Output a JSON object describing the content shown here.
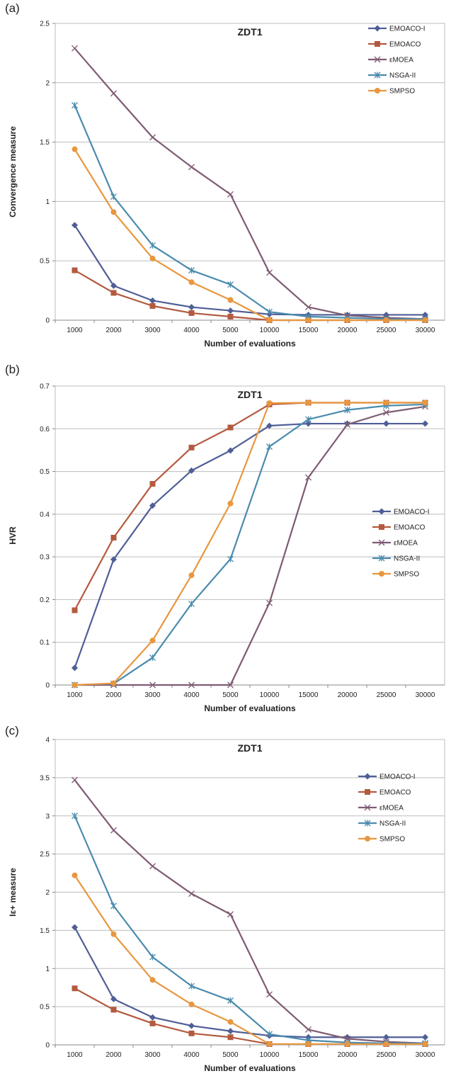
{
  "chart_data": [
    {
      "panel_label": "(a)",
      "type": "line",
      "title": "ZDT1",
      "xlabel": "Number of evaluations",
      "ylabel": "Convergence measure",
      "categories": [
        "1000",
        "2000",
        "3000",
        "4000",
        "5000",
        "10000",
        "15000",
        "20000",
        "25000",
        "30000"
      ],
      "ylim": [
        0,
        2.5
      ],
      "yticks": [
        "0",
        "0.5",
        "1",
        "1.5",
        "2",
        "2.5"
      ],
      "grid": true,
      "legend_position": "top-right",
      "series": [
        {
          "name": "EMOACO-I",
          "color": "#4F5E96",
          "marker": "diamond",
          "values": [
            0.8,
            0.29,
            0.165,
            0.11,
            0.08,
            0.05,
            0.045,
            0.045,
            0.045,
            0.045
          ]
        },
        {
          "name": "EMOACO",
          "color": "#B35A3F",
          "marker": "square",
          "values": [
            0.42,
            0.23,
            0.12,
            0.06,
            0.03,
            0.0,
            0.0,
            0.0,
            0.0,
            0.0
          ]
        },
        {
          "name": "εMOEA",
          "color": "#7E5B73",
          "marker": "x",
          "values": [
            2.29,
            1.91,
            1.54,
            1.29,
            1.06,
            0.4,
            0.11,
            0.04,
            0.02,
            0.01
          ]
        },
        {
          "name": "NSGA-II",
          "color": "#4A8BAE",
          "marker": "star",
          "values": [
            1.81,
            1.04,
            0.63,
            0.42,
            0.3,
            0.07,
            0.03,
            0.02,
            0.01,
            0.01
          ]
        },
        {
          "name": "SMPSO",
          "color": "#E8973F",
          "marker": "circle",
          "values": [
            1.44,
            0.91,
            0.52,
            0.32,
            0.17,
            0.0,
            0.0,
            0.0,
            0.0,
            0.0
          ]
        }
      ]
    },
    {
      "panel_label": "(b)",
      "type": "line",
      "title": "ZDT1",
      "xlabel": "Number of evaluations",
      "ylabel": "HVR",
      "categories": [
        "1000",
        "2000",
        "3000",
        "4000",
        "5000",
        "10000",
        "15000",
        "20000",
        "25000",
        "30000"
      ],
      "ylim": [
        0,
        0.7
      ],
      "yticks": [
        "0",
        "0.1",
        "0.2",
        "0.3",
        "0.4",
        "0.5",
        "0.6",
        "0.7"
      ],
      "grid": true,
      "legend_position": "right",
      "series": [
        {
          "name": "EMOACO-I",
          "color": "#4F5E96",
          "marker": "diamond",
          "values": [
            0.04,
            0.294,
            0.42,
            0.502,
            0.549,
            0.607,
            0.612,
            0.612,
            0.612,
            0.612
          ]
        },
        {
          "name": "EMOACO",
          "color": "#B35A3F",
          "marker": "square",
          "values": [
            0.175,
            0.345,
            0.471,
            0.556,
            0.603,
            0.657,
            0.661,
            0.661,
            0.661,
            0.661
          ]
        },
        {
          "name": "εMOEA",
          "color": "#7E5B73",
          "marker": "x",
          "values": [
            0.0,
            0.0,
            0.0,
            0.0,
            0.0,
            0.192,
            0.486,
            0.61,
            0.638,
            0.652
          ]
        },
        {
          "name": "NSGA-II",
          "color": "#4A8BAE",
          "marker": "star",
          "values": [
            0.0,
            0.003,
            0.064,
            0.19,
            0.295,
            0.558,
            0.622,
            0.644,
            0.654,
            0.657
          ]
        },
        {
          "name": "SMPSO",
          "color": "#E8973F",
          "marker": "circle",
          "values": [
            0.0,
            0.004,
            0.104,
            0.257,
            0.425,
            0.66,
            0.661,
            0.661,
            0.661,
            0.661
          ]
        }
      ]
    },
    {
      "panel_label": "(c)",
      "type": "line",
      "title": "ZDT1",
      "xlabel": "Number of evaluations",
      "ylabel": "Iε+ measure",
      "categories": [
        "1000",
        "2000",
        "3000",
        "4000",
        "5000",
        "10000",
        "15000",
        "20000",
        "25000",
        "30000"
      ],
      "ylim": [
        0,
        4
      ],
      "yticks": [
        "0",
        "0.5",
        "1",
        "1.5",
        "2",
        "2.5",
        "3",
        "3.5",
        "4"
      ],
      "grid": true,
      "legend_position": "top-right",
      "series": [
        {
          "name": "EMOACO-I",
          "color": "#4F5E96",
          "marker": "diamond",
          "values": [
            1.54,
            0.6,
            0.36,
            0.25,
            0.18,
            0.12,
            0.1,
            0.1,
            0.1,
            0.1
          ]
        },
        {
          "name": "EMOACO",
          "color": "#B35A3F",
          "marker": "square",
          "values": [
            0.74,
            0.46,
            0.28,
            0.15,
            0.1,
            0.01,
            0.01,
            0.01,
            0.01,
            0.01
          ]
        },
        {
          "name": "εMOEA",
          "color": "#7E5B73",
          "marker": "x",
          "values": [
            3.47,
            2.81,
            2.34,
            1.98,
            1.71,
            0.66,
            0.2,
            0.08,
            0.04,
            0.02
          ]
        },
        {
          "name": "NSGA-II",
          "color": "#4A8BAE",
          "marker": "star",
          "values": [
            3.0,
            1.82,
            1.15,
            0.77,
            0.58,
            0.14,
            0.06,
            0.03,
            0.02,
            0.02
          ]
        },
        {
          "name": "SMPSO",
          "color": "#E8973F",
          "marker": "circle",
          "values": [
            2.22,
            1.45,
            0.85,
            0.53,
            0.3,
            0.01,
            0.01,
            0.01,
            0.01,
            0.01
          ]
        }
      ]
    }
  ]
}
